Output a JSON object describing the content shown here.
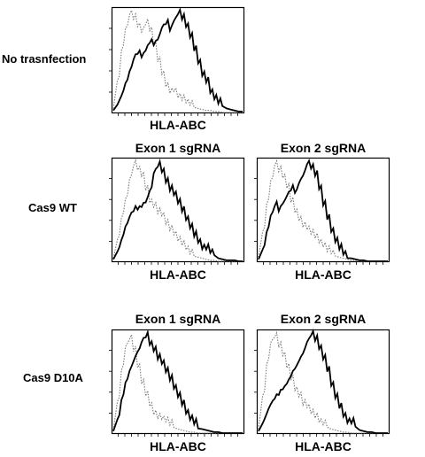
{
  "chart_data": {
    "type": "histogram-overlay",
    "layout": "3 rows; row 1 has one panel, rows 2–3 have two panels",
    "x_axis_label_all": "HLA-ABC",
    "series_styles": {
      "stained": {
        "line": "solid",
        "color": "#000000"
      },
      "control": {
        "line": "dotted",
        "color": "#7a7a7a"
      }
    },
    "rows": [
      {
        "label": "No trasnfection",
        "panels": [
          {
            "column_title": "",
            "xlabel": "HLA-ABC",
            "series": [
              {
                "style": "solid",
                "y": [
                  2,
                  6,
                  15,
                  28,
                  40,
                  52,
                  58,
                  55,
                  62,
                  70,
                  68,
                  74,
                  82,
                  86,
                  80,
                  90,
                  97,
                  92,
                  85,
                  75,
                  62,
                  50,
                  38,
                  28,
                  18,
                  12,
                  8,
                  6,
                  4,
                  3,
                  2,
                  1,
                  1
                ]
              },
              {
                "style": "dotted",
                "y": [
                  4,
                  30,
                  60,
                  82,
                  96,
                  92,
                  85,
                  80,
                  88,
                  82,
                  68,
                  52,
                  36,
                  24,
                  18,
                  20,
                  14,
                  12,
                  10,
                  8,
                  6,
                  4,
                  3,
                  2,
                  2,
                  1,
                  1,
                  0,
                  0,
                  0,
                  0,
                  0,
                  0
                ]
              }
            ]
          }
        ]
      },
      {
        "label": "Cas9 WT",
        "panels": [
          {
            "column_title": "Exon 1 sgRNA",
            "xlabel": "HLA-ABC",
            "series": [
              {
                "style": "solid",
                "y": [
                  2,
                  8,
                  20,
                  34,
                  44,
                  50,
                  52,
                  55,
                  60,
                  72,
                  90,
                  97,
                  88,
                  78,
                  70,
                  66,
                  58,
                  50,
                  42,
                  34,
                  26,
                  20,
                  14,
                  10,
                  7,
                  5,
                  3,
                  2,
                  1,
                  1,
                  1,
                  0,
                  0
                ]
              },
              {
                "style": "dotted",
                "y": [
                  3,
                  20,
                  42,
                  62,
                  82,
                  96,
                  92,
                  86,
                  72,
                  60,
                  56,
                  50,
                  44,
                  36,
                  30,
                  26,
                  20,
                  16,
                  12,
                  8,
                  6,
                  4,
                  3,
                  2,
                  1,
                  1,
                  0,
                  0,
                  0,
                  0,
                  0,
                  0,
                  0
                ]
              }
            ]
          },
          {
            "column_title": "Exon 2 sgRNA",
            "xlabel": "HLA-ABC",
            "series": [
              {
                "style": "solid",
                "y": [
                  2,
                  10,
                  28,
                  45,
                  55,
                  50,
                  58,
                  66,
                  72,
                  70,
                  80,
                  88,
                  96,
                  92,
                  85,
                  72,
                  56,
                  42,
                  30,
                  20,
                  13,
                  8,
                  5,
                  3,
                  2,
                  1,
                  1,
                  0,
                  0,
                  0,
                  0,
                  0,
                  0
                ]
              },
              {
                "style": "dotted",
                "y": [
                  4,
                  28,
                  56,
                  80,
                  96,
                  90,
                  84,
                  74,
                  60,
                  50,
                  42,
                  36,
                  30,
                  26,
                  22,
                  18,
                  14,
                  10,
                  8,
                  6,
                  4,
                  3,
                  2,
                  1,
                  1,
                  0,
                  0,
                  0,
                  0,
                  0,
                  0,
                  0,
                  0
                ]
              }
            ]
          }
        ]
      },
      {
        "label": "Cas9 D10A",
        "panels": [
          {
            "column_title": "Exon 1 sgRNA",
            "xlabel": "HLA-ABC",
            "series": [
              {
                "style": "solid",
                "y": [
                  2,
                  12,
                  32,
                  50,
                  62,
                  72,
                  82,
                  92,
                  97,
                  90,
                  84,
                  76,
                  68,
                  60,
                  52,
                  44,
                  36,
                  28,
                  20,
                  14,
                  10,
                  6,
                  4,
                  3,
                  2,
                  1,
                  1,
                  0,
                  0,
                  0,
                  0,
                  0,
                  0
                ]
              },
              {
                "style": "dotted",
                "y": [
                  3,
                  30,
                  62,
                  86,
                  94,
                  82,
                  66,
                  50,
                  38,
                  28,
                  20,
                  16,
                  12,
                  10,
                  7,
                  5,
                  4,
                  3,
                  2,
                  1,
                  1,
                  0,
                  0,
                  0,
                  0,
                  0,
                  0,
                  0,
                  0,
                  0,
                  0,
                  0,
                  0
                ]
              }
            ]
          },
          {
            "column_title": "Exon 2 sgRNA",
            "xlabel": "HLA-ABC",
            "series": [
              {
                "style": "solid",
                "y": [
                  2,
                  8,
                  18,
                  28,
                  34,
                  38,
                  44,
                  50,
                  58,
                  66,
                  74,
                  82,
                  90,
                  97,
                  92,
                  84,
                  74,
                  62,
                  48,
                  36,
                  26,
                  18,
                  12,
                  8,
                  5,
                  3,
                  2,
                  1,
                  1,
                  0,
                  0,
                  0,
                  0
                ]
              },
              {
                "style": "dotted",
                "y": [
                  4,
                  36,
                  68,
                  90,
                  96,
                  86,
                  78,
                  66,
                  54,
                  44,
                  38,
                  30,
                  24,
                  18,
                  14,
                  10,
                  8,
                  6,
                  4,
                  3,
                  2,
                  1,
                  1,
                  0,
                  0,
                  0,
                  0,
                  0,
                  0,
                  0,
                  0,
                  0,
                  0
                ]
              }
            ]
          }
        ]
      }
    ]
  }
}
